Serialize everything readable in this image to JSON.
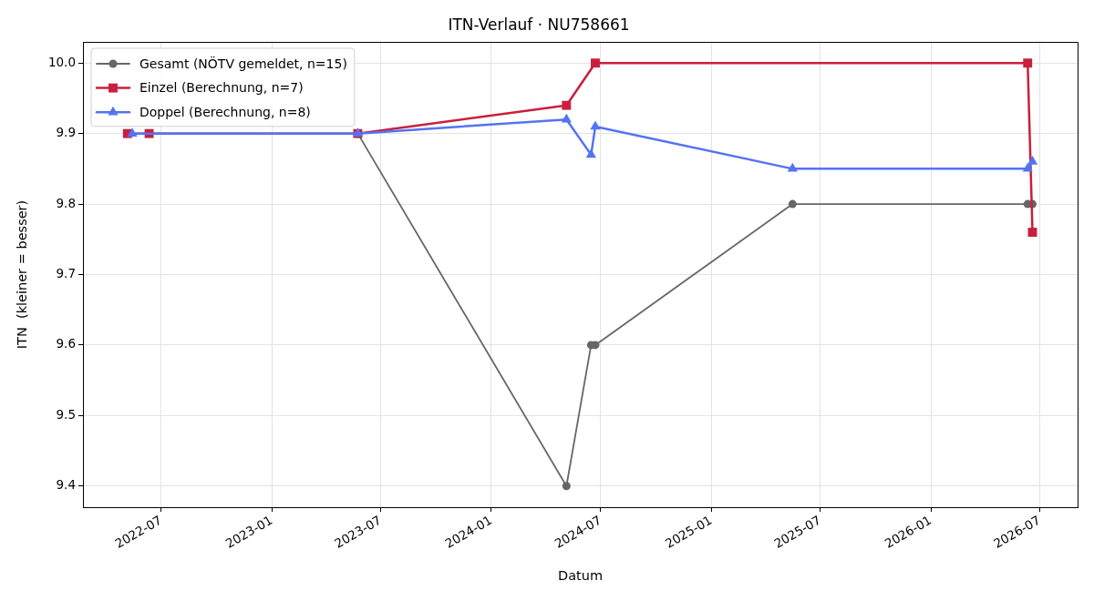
{
  "chart_data": {
    "type": "line",
    "title": "ITN-Verlauf · NU758661",
    "xlabel": "Datum",
    "ylabel": "ITN  (kleiner = besser)",
    "series": [
      {
        "name": "Gesamt (NÖTV gemeldet, n=15)",
        "color": "#666666",
        "marker": "circle",
        "x": [
          "2023-05-24",
          "2024-05-05",
          "2024-06-15",
          "2024-06-22",
          "2025-05-16",
          "2026-06-11",
          "2026-06-19"
        ],
        "values": [
          9.9,
          9.4,
          9.6,
          9.6,
          9.8,
          9.8,
          9.8
        ]
      },
      {
        "name": "Einzel (Berechnung, n=7)",
        "color": "#c91f3d",
        "marker": "square",
        "x": [
          "2022-05-06",
          "2022-06-11",
          "2023-05-24",
          "2024-05-05",
          "2024-06-22",
          "2026-06-11",
          "2026-06-19"
        ],
        "values": [
          9.9,
          9.9,
          9.9,
          9.94,
          10.0,
          10.0,
          9.76
        ]
      },
      {
        "name": "Doppel (Berechnung, n=8)",
        "color": "#5473f2",
        "marker": "triangle",
        "x": [
          "2022-05-14",
          "2023-05-24",
          "2024-05-05",
          "2024-06-15",
          "2024-06-22",
          "2025-05-16",
          "2026-06-11",
          "2026-06-19"
        ],
        "values": [
          9.9,
          9.9,
          9.92,
          9.87,
          9.91,
          9.85,
          9.85,
          9.86
        ]
      }
    ],
    "xlim": [
      "2022-02-21",
      "2026-09-02"
    ],
    "ylim": [
      9.37,
      10.03
    ],
    "xticks": [
      "2022-07",
      "2023-01",
      "2023-07",
      "2024-01",
      "2024-07",
      "2025-01",
      "2025-07",
      "2026-01",
      "2026-07"
    ],
    "yticks": [
      9.4,
      9.5,
      9.6,
      9.7,
      9.8,
      9.9,
      {
        "value": 10,
        "label": "10.0"
      }
    ],
    "grid": true,
    "legend": "top left"
  }
}
